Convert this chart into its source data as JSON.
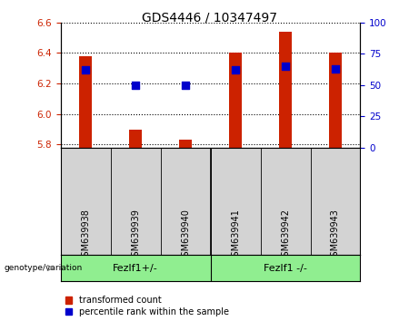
{
  "title": "GDS4446 / 10347497",
  "samples": [
    "GSM639938",
    "GSM639939",
    "GSM639940",
    "GSM639941",
    "GSM639942",
    "GSM639943"
  ],
  "transformed_count": [
    6.38,
    5.9,
    5.83,
    6.4,
    6.54,
    6.4
  ],
  "percentile_rank": [
    62,
    50,
    50,
    62,
    65,
    63
  ],
  "ylim_left": [
    5.78,
    6.6
  ],
  "ylim_right": [
    0,
    100
  ],
  "yticks_left": [
    5.8,
    6.0,
    6.2,
    6.4,
    6.6
  ],
  "yticks_right": [
    0,
    25,
    50,
    75,
    100
  ],
  "bar_color": "#cc2200",
  "dot_color": "#0000cc",
  "bar_width": 0.25,
  "dot_size": 28,
  "left_axis_color": "#cc2200",
  "right_axis_color": "#0000cc",
  "group_labels": [
    "Fezlf1+/-",
    "Fezlf1 -/-"
  ],
  "legend_items": [
    "transformed count",
    "percentile rank within the sample"
  ],
  "bottom_label": "genotype/variation",
  "background_plot": "#ffffff",
  "background_label": "#d3d3d3",
  "background_group": "#90ee90",
  "tick_fontsize": 7.5,
  "title_fontsize": 10
}
